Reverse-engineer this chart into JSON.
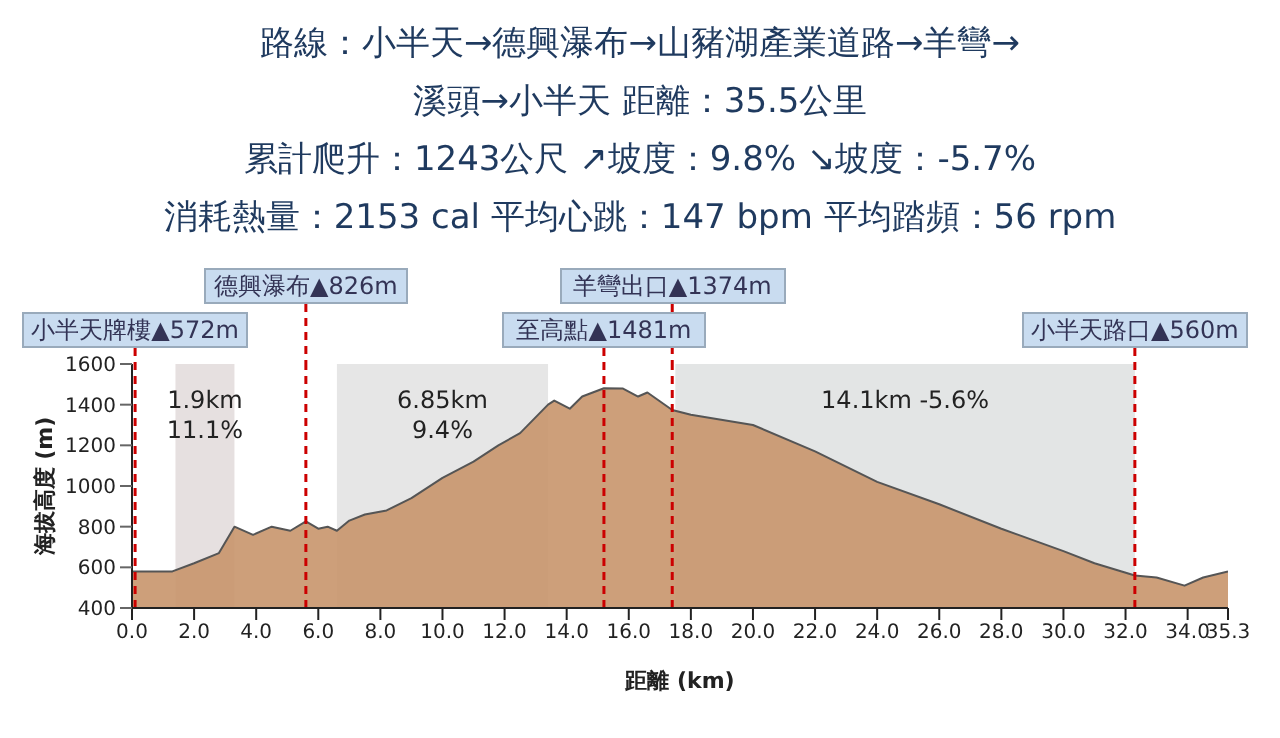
{
  "chart_data": {
    "type": "area",
    "title": "路線：小半天→德興瀑布→山豬湖產業道路→羊彎→溪頭→小半天 距離：35.5公里",
    "subtitle": "累計爬升：1243公尺 ↗坡度：9.8% ↘坡度：-5.7%\n消耗熱量：2153 cal 平均心跳：147 bpm 平均踏頻：56 rpm",
    "xlabel": "距離 (km)",
    "ylabel": "海拔高度 (m)",
    "x": [
      0,
      1.3,
      2,
      2.8,
      3.3,
      3.9,
      4.5,
      5.1,
      5.6,
      6.0,
      6.3,
      6.6,
      7.0,
      7.5,
      8.2,
      9,
      10,
      11,
      11.8,
      12.5,
      13.4,
      13.6,
      14.1,
      14.5,
      15.2,
      15.8,
      16.3,
      16.6,
      17.4,
      18,
      20,
      22,
      24,
      26,
      28,
      30,
      31,
      32.3,
      33,
      33.9,
      34.5,
      35.3
    ],
    "series": [
      {
        "color": "#c8956c",
        "values": [
          580,
          580,
          620,
          670,
          800,
          760,
          800,
          780,
          826,
          790,
          800,
          780,
          830,
          860,
          880,
          940,
          1040,
          1120,
          1200,
          1260,
          1400,
          1420,
          1380,
          1440,
          1481,
          1480,
          1440,
          1460,
          1374,
          1350,
          1300,
          1170,
          1020,
          910,
          790,
          680,
          620,
          560,
          550,
          510,
          550,
          580
        ]
      }
    ],
    "xlim": [
      0,
      35.3
    ],
    "xticks": [
      {
        "value": 0,
        "label": "0.0"
      },
      {
        "value": 2,
        "label": "2.0"
      },
      {
        "value": 4,
        "label": "4.0"
      },
      {
        "value": 6,
        "label": "6.0"
      },
      {
        "value": 8,
        "label": "8.0"
      },
      {
        "value": 10,
        "label": "10.0"
      },
      {
        "value": 12,
        "label": "12.0"
      },
      {
        "value": 14,
        "label": "14.0"
      },
      {
        "value": 16,
        "label": "16.0"
      },
      {
        "value": 18,
        "label": "18.0"
      },
      {
        "value": 20,
        "label": "20.0"
      },
      {
        "value": 22,
        "label": "22.0"
      },
      {
        "value": 24,
        "label": "24.0"
      },
      {
        "value": 26,
        "label": "26.0"
      },
      {
        "value": 28,
        "label": "28.0"
      },
      {
        "value": 30,
        "label": "30.0"
      },
      {
        "value": 32,
        "label": "32.0"
      },
      {
        "value": 34,
        "label": "34.0"
      },
      35.3
    ],
    "ylim": [
      400,
      1600
    ],
    "yticks": [
      400,
      600,
      800,
      1000,
      1200,
      1400,
      1600
    ],
    "bands": [
      {
        "axis": "x",
        "from": 1.4,
        "to": 3.3,
        "label": "1.9km\n11.1%",
        "color": "#e6e0e0"
      },
      {
        "axis": "x",
        "from": 6.6,
        "to": 13.4,
        "label": "6.85km\n9.4%",
        "color": "#e6e6e6"
      },
      {
        "axis": "x",
        "from": 17.5,
        "to": 32.3,
        "label": "14.1km  -5.6%",
        "color": "#e3e5e5"
      }
    ],
    "ref_lines": [
      {
        "axis": "x",
        "value": 0.1,
        "label": "小半天牌樓▲572m",
        "color": "#cc0000",
        "line_style": "dashed"
      },
      {
        "axis": "x",
        "value": 5.6,
        "label": "德興瀑布▲826m",
        "color": "#cc0000",
        "line_style": "dashed"
      },
      {
        "axis": "x",
        "value": 15.2,
        "label": "至高點▲1481m",
        "color": "#cc0000",
        "line_style": "dashed"
      },
      {
        "axis": "x",
        "value": 17.4,
        "label": "羊彎出口▲1374m",
        "color": "#cc0000",
        "line_style": "dashed"
      },
      {
        "axis": "x",
        "value": 32.3,
        "label": "小半天路口▲560m",
        "color": "#cc0000",
        "line_style": "dashed"
      }
    ]
  }
}
